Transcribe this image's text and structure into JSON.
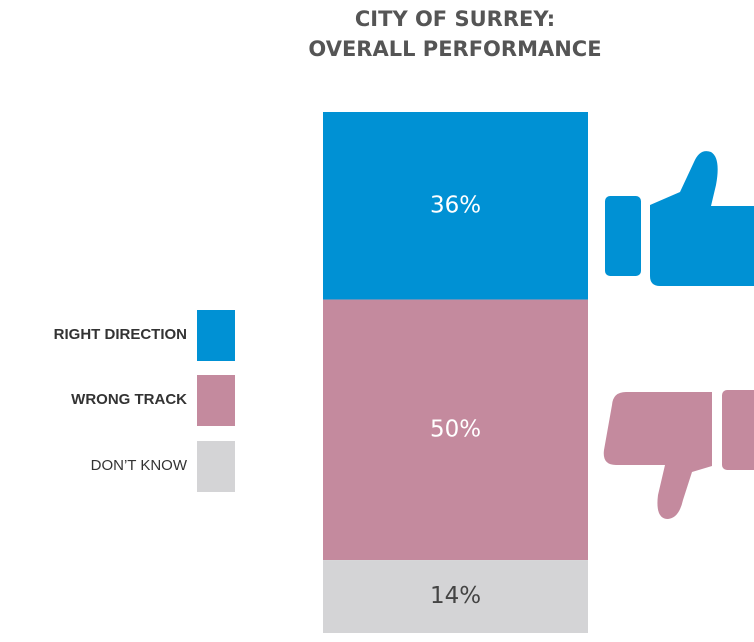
{
  "chart_data": {
    "type": "stacked_bar",
    "title": [
      "CITY OF SURREY:",
      "OVERALL PERFORMANCE"
    ],
    "series": [
      {
        "name": "RIGHT DIRECTION",
        "color": "#0091d4",
        "values": [
          36
        ],
        "value_labels": [
          "36%"
        ]
      },
      {
        "name": "WRONG TRACK",
        "color": "#c48a9e",
        "values": [
          50
        ],
        "value_labels": [
          "50%"
        ]
      },
      {
        "name": "DON’T KNOW",
        "color": "#d4d4d6",
        "values": [
          14
        ],
        "value_labels": [
          "14%"
        ]
      }
    ]
  }
}
